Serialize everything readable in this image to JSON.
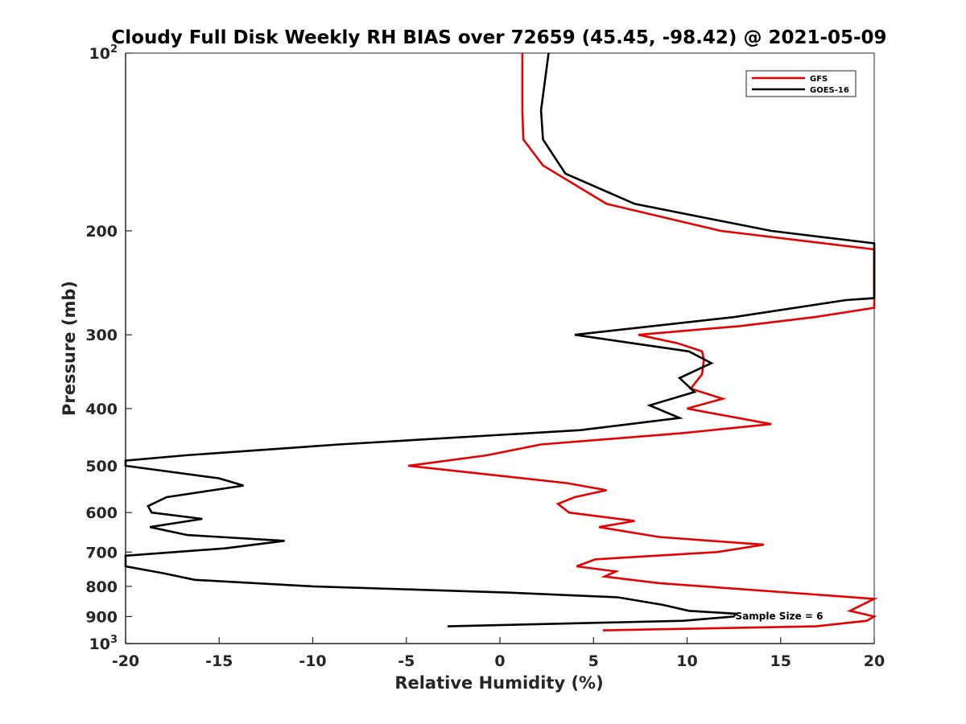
{
  "chart_data": {
    "type": "line",
    "title": "Cloudy Full Disk Weekly RH BIAS over 72659 (45.45, -98.42) @ 2021-05-09",
    "xlabel": "Relative Humidity (%)",
    "ylabel": "Pressure (mb)",
    "xlim": [
      -20,
      20
    ],
    "ylim": [
      100,
      1000
    ],
    "y_scale": "log",
    "y_reversed": true,
    "x_ticks": [
      -20,
      -15,
      -10,
      -5,
      0,
      5,
      10,
      15,
      20
    ],
    "x_tick_labels": [
      "-20",
      "-15",
      "-10",
      "-5",
      "0",
      "5",
      "10",
      "15",
      "20"
    ],
    "y_ticks": [
      100,
      200,
      300,
      400,
      500,
      600,
      700,
      800,
      900,
      1000
    ],
    "y_tick_labels": [
      {
        "base": "10",
        "sup": "2"
      },
      {
        "base": "200",
        "sup": ""
      },
      {
        "base": "300",
        "sup": ""
      },
      {
        "base": "400",
        "sup": ""
      },
      {
        "base": "500",
        "sup": ""
      },
      {
        "base": "600",
        "sup": ""
      },
      {
        "base": "700",
        "sup": ""
      },
      {
        "base": "800",
        "sup": ""
      },
      {
        "base": "900",
        "sup": ""
      },
      {
        "base": "10",
        "sup": "3"
      }
    ],
    "grid": false,
    "legend_position": "top-right",
    "annotation": "Sample Size = 6",
    "series": [
      {
        "name": "GFS",
        "color": "#e60000",
        "points": [
          [
            1.2,
            100
          ],
          [
            1.2,
            125
          ],
          [
            1.25,
            140
          ],
          [
            2.3,
            155
          ],
          [
            5.7,
            180
          ],
          [
            11.8,
            200
          ],
          [
            20,
            215
          ],
          [
            20,
            270
          ],
          [
            16.8,
            280
          ],
          [
            12.8,
            290
          ],
          [
            7.4,
            300
          ],
          [
            9.5,
            310
          ],
          [
            10.8,
            320
          ],
          [
            10.9,
            330
          ],
          [
            10.8,
            350
          ],
          [
            10.2,
            370
          ],
          [
            11.9,
            385
          ],
          [
            10.0,
            400
          ],
          [
            14.5,
            425
          ],
          [
            9.8,
            440
          ],
          [
            2.2,
            460
          ],
          [
            -0.7,
            480
          ],
          [
            -4.9,
            500
          ],
          [
            3.6,
            535
          ],
          [
            5.7,
            550
          ],
          [
            4.0,
            565
          ],
          [
            3.1,
            580
          ],
          [
            3.7,
            600
          ],
          [
            7.2,
            620
          ],
          [
            5.3,
            635
          ],
          [
            8.5,
            660
          ],
          [
            14.1,
            680
          ],
          [
            11.6,
            700
          ],
          [
            5.1,
            720
          ],
          [
            4.1,
            740
          ],
          [
            6.2,
            755
          ],
          [
            5.6,
            770
          ],
          [
            8.5,
            790
          ],
          [
            20,
            840
          ],
          [
            18.7,
            880
          ],
          [
            20,
            900
          ],
          [
            19.6,
            915
          ],
          [
            16.9,
            935
          ],
          [
            5.5,
            950
          ]
        ]
      },
      {
        "name": "GOES-16",
        "color": "#000000",
        "points": [
          [
            2.6,
            100
          ],
          [
            2.2,
            125
          ],
          [
            2.3,
            140
          ],
          [
            3.5,
            160
          ],
          [
            7.2,
            180
          ],
          [
            14.5,
            200
          ],
          [
            20,
            210
          ],
          [
            20,
            260
          ],
          [
            18.5,
            262
          ],
          [
            12.5,
            280
          ],
          [
            4.0,
            300
          ],
          [
            10.1,
            320
          ],
          [
            11.3,
            335
          ],
          [
            9.6,
            355
          ],
          [
            10.4,
            375
          ],
          [
            8.0,
            395
          ],
          [
            9.6,
            415
          ],
          [
            4.3,
            435
          ],
          [
            -8.6,
            460
          ],
          [
            -16.8,
            480
          ],
          [
            -20,
            490
          ],
          [
            -20,
            500
          ],
          [
            -15.0,
            525
          ],
          [
            -13.7,
            540
          ],
          [
            -17.8,
            565
          ],
          [
            -18.8,
            585
          ],
          [
            -18.6,
            600
          ],
          [
            -15.9,
            615
          ],
          [
            -18.7,
            635
          ],
          [
            -16.7,
            655
          ],
          [
            -11.5,
            670
          ],
          [
            -14.7,
            690
          ],
          [
            -20,
            710
          ],
          [
            -20,
            740
          ],
          [
            -18.0,
            760
          ],
          [
            -16.3,
            780
          ],
          [
            -10,
            800
          ],
          [
            0.5,
            820
          ],
          [
            6.3,
            835
          ],
          [
            8.7,
            860
          ],
          [
            10.1,
            880
          ],
          [
            12.6,
            890
          ],
          [
            12.5,
            900
          ],
          [
            9.8,
            915
          ],
          [
            -2.8,
            935
          ]
        ]
      }
    ]
  }
}
